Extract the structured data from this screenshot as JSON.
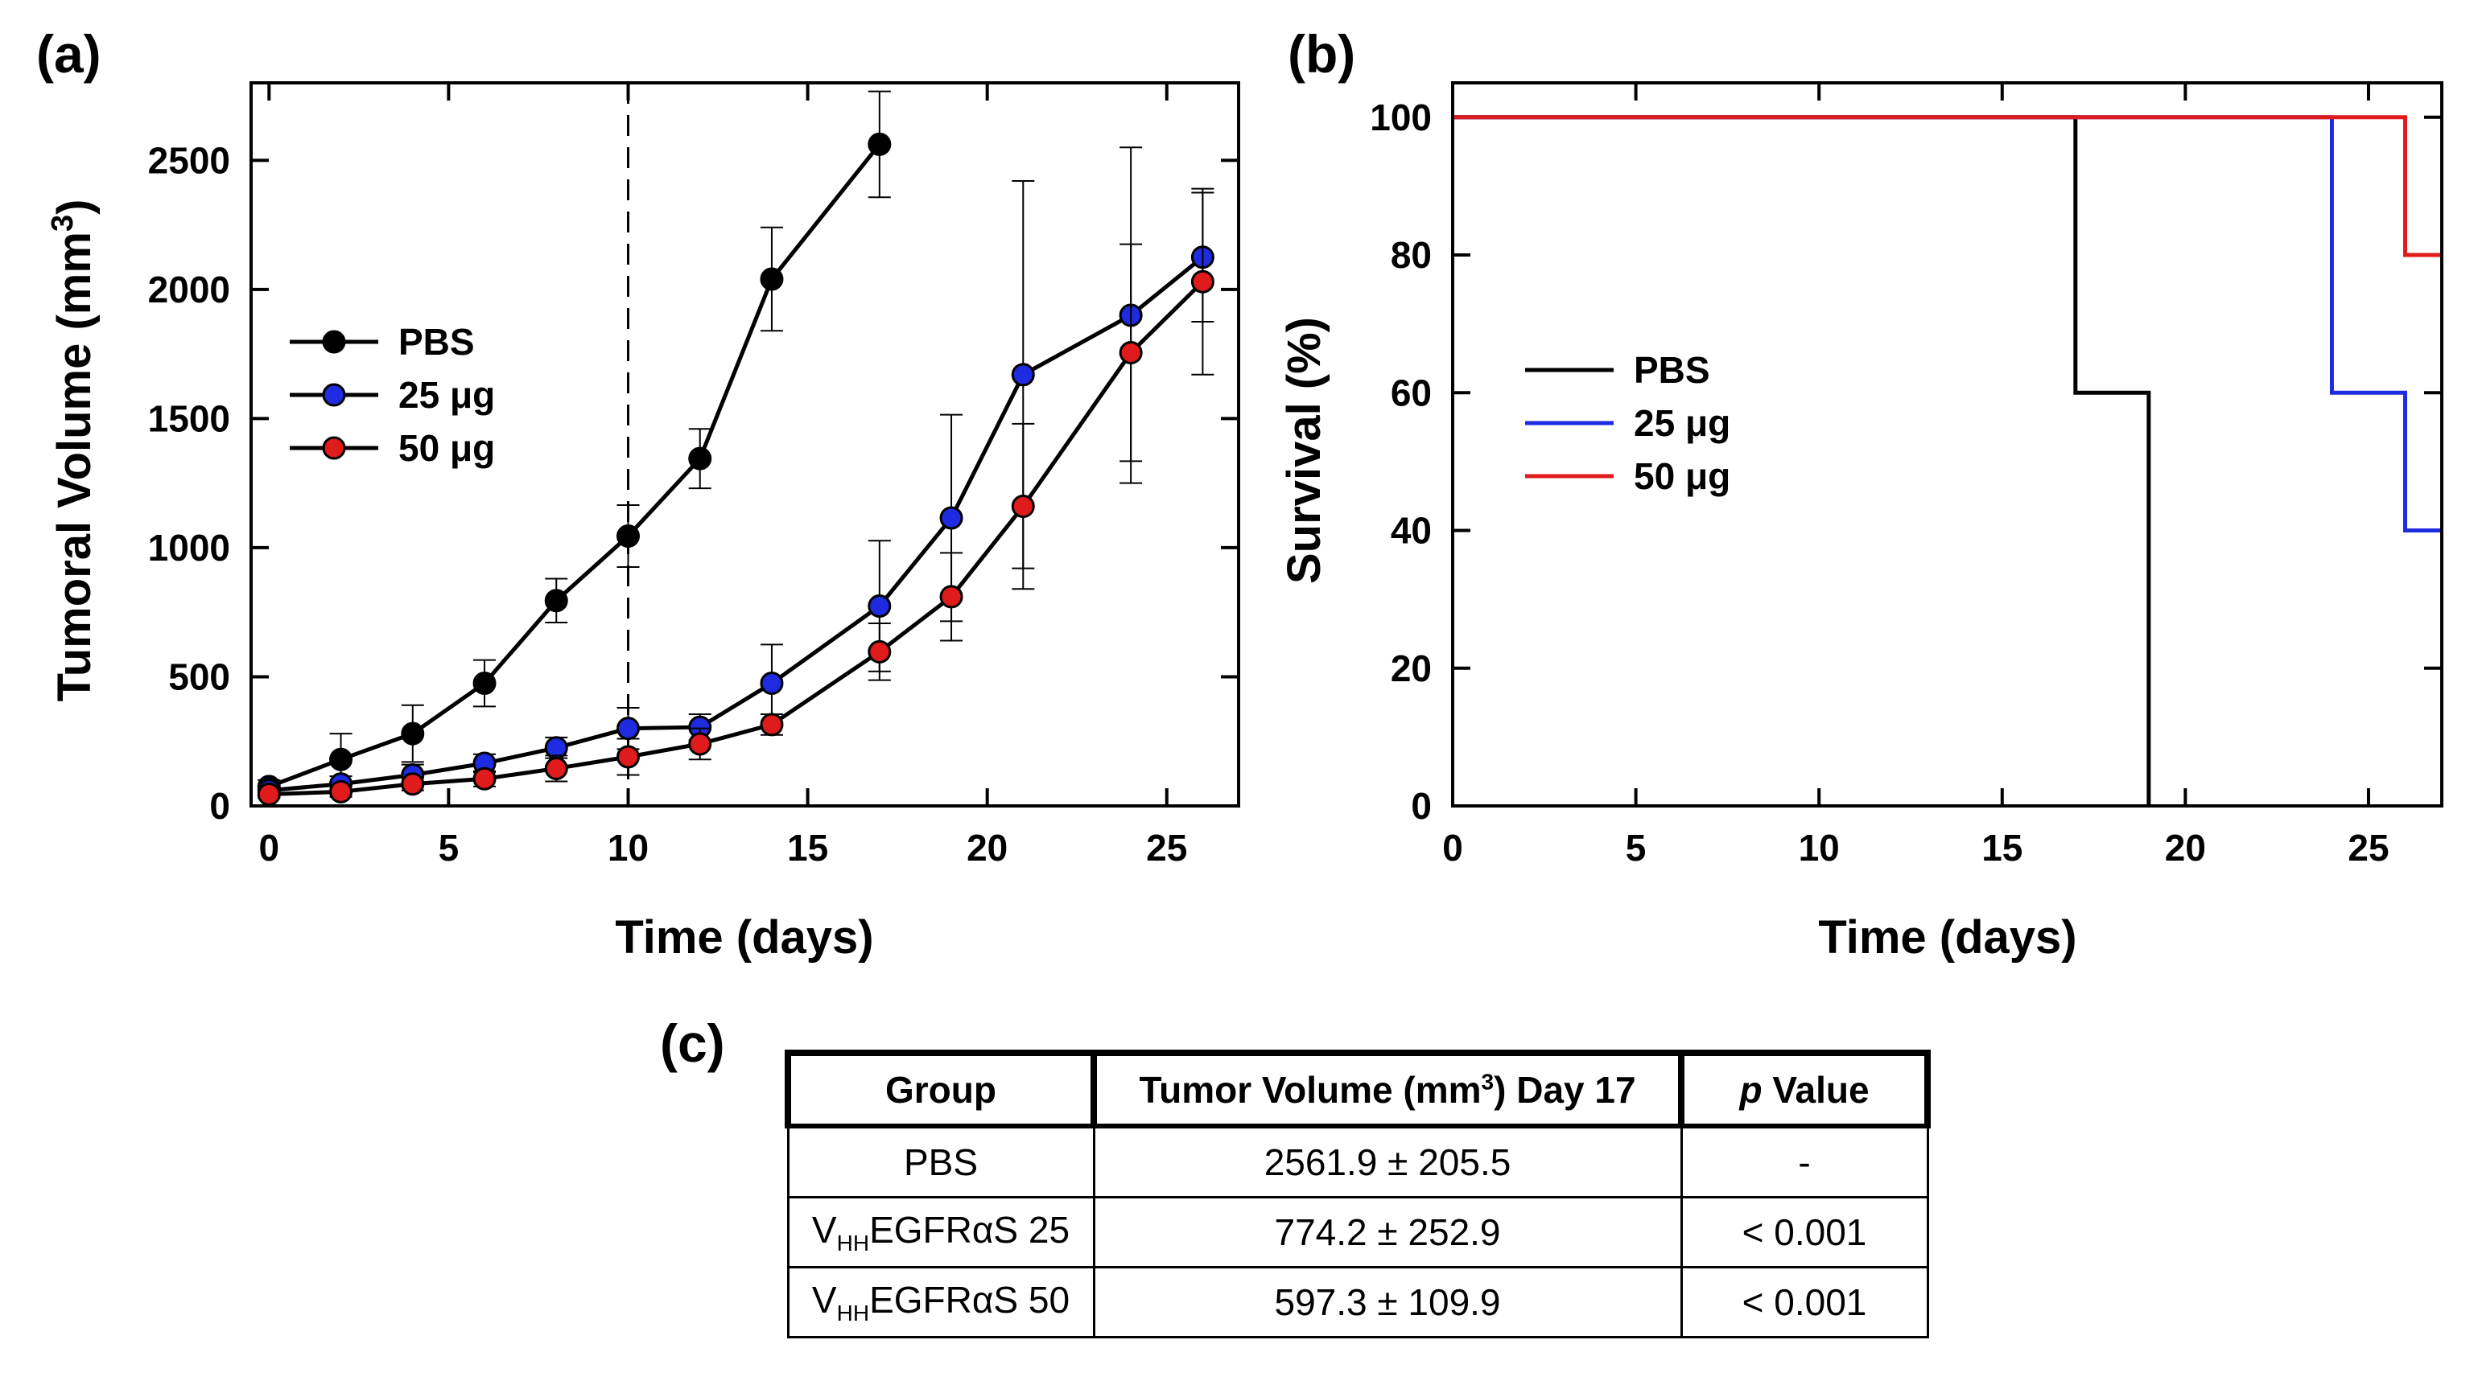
{
  "panels": {
    "a": "(a)",
    "b": "(b)",
    "c": "(c)"
  },
  "colors": {
    "PBS": "#000000",
    "25": "#1f2be0",
    "50": "#e01b1b",
    "marker_blue": "#1f2be0",
    "marker_red": "#e61e1e"
  },
  "chart_data": [
    {
      "id": "a",
      "type": "line",
      "title": "",
      "xlabel": "Time (days)",
      "ylabel_main": "Tumoral Volume (mm",
      "ylabel_sup": "3",
      "ylabel_end": ")",
      "xlim": [
        -0.5,
        27
      ],
      "ylim": [
        0,
        2800
      ],
      "xticks": [
        0,
        5,
        10,
        15,
        20,
        25
      ],
      "yticks": [
        0,
        500,
        1000,
        1500,
        2000,
        2500
      ],
      "vline_x": 10,
      "legend_position": "upper-left",
      "series": [
        {
          "name": "PBS",
          "color": "#000000",
          "x": [
            0,
            2,
            4,
            6,
            8,
            10,
            12,
            14,
            17
          ],
          "y": [
            75,
            180,
            280,
            475,
            795,
            1045,
            1345,
            2040,
            2562
          ],
          "err": [
            25,
            100,
            110,
            90,
            85,
            120,
            115,
            200,
            205
          ]
        },
        {
          "name": "25 μg",
          "color": "#1f2be0",
          "x": [
            0,
            2,
            4,
            6,
            8,
            10,
            12,
            14,
            17,
            19,
            21,
            24,
            26
          ],
          "y": [
            60,
            85,
            120,
            165,
            225,
            300,
            305,
            475,
            774,
            1115,
            1670,
            1900,
            2125
          ],
          "err": [
            20,
            30,
            40,
            35,
            40,
            80,
            50,
            150,
            253,
            400,
            750,
            650,
            250
          ]
        },
        {
          "name": "50 μg",
          "color": "#e01b1b",
          "x": [
            0,
            2,
            4,
            6,
            8,
            10,
            12,
            14,
            17,
            19,
            21,
            24,
            26
          ],
          "y": [
            45,
            55,
            85,
            105,
            145,
            190,
            240,
            315,
            597,
            810,
            1160,
            1755,
            2030
          ],
          "err": [
            15,
            20,
            25,
            30,
            50,
            70,
            60,
            40,
            110,
            170,
            320,
            420,
            360
          ]
        }
      ]
    },
    {
      "id": "b",
      "type": "line",
      "step": true,
      "title": "",
      "xlabel": "Time (days)",
      "ylabel": "Survival (%)",
      "xlim": [
        0,
        27
      ],
      "ylim": [
        0,
        105
      ],
      "xticks": [
        0,
        5,
        10,
        15,
        20,
        25
      ],
      "yticks": [
        0,
        20,
        40,
        60,
        80,
        100
      ],
      "legend_position": "center-left",
      "series": [
        {
          "name": "PBS",
          "color": "#000000",
          "x": [
            0,
            17,
            17,
            19,
            19
          ],
          "y": [
            100,
            100,
            60,
            60,
            0
          ]
        },
        {
          "name": "25 μg",
          "color": "#1f2be0",
          "x": [
            0,
            24,
            24,
            26,
            26,
            27
          ],
          "y": [
            100,
            100,
            60,
            60,
            40,
            40
          ]
        },
        {
          "name": "50 μg",
          "color": "#e01b1b",
          "x": [
            0,
            26,
            26,
            27
          ],
          "y": [
            100,
            100,
            80,
            80
          ]
        }
      ]
    }
  ],
  "table": {
    "headers": {
      "group": "Group",
      "volume_main": "Tumor Volume (mm",
      "volume_sup": "3",
      "volume_end": ") Day 17",
      "p_italic": "p",
      "p_rest": " Value"
    },
    "rows": [
      {
        "group_main": "PBS",
        "group_sub": "",
        "group_end": "",
        "volume": "2561.9 ± 205.5",
        "p": "-"
      },
      {
        "group_main": "V",
        "group_sub": "HH",
        "group_end": "EGFRαS 25",
        "volume": "774.2 ± 252.9",
        "p": "< 0.001"
      },
      {
        "group_main": "V",
        "group_sub": "HH",
        "group_end": "EGFRαS 50",
        "volume": "597.3 ± 109.9",
        "p": "< 0.001"
      }
    ]
  }
}
